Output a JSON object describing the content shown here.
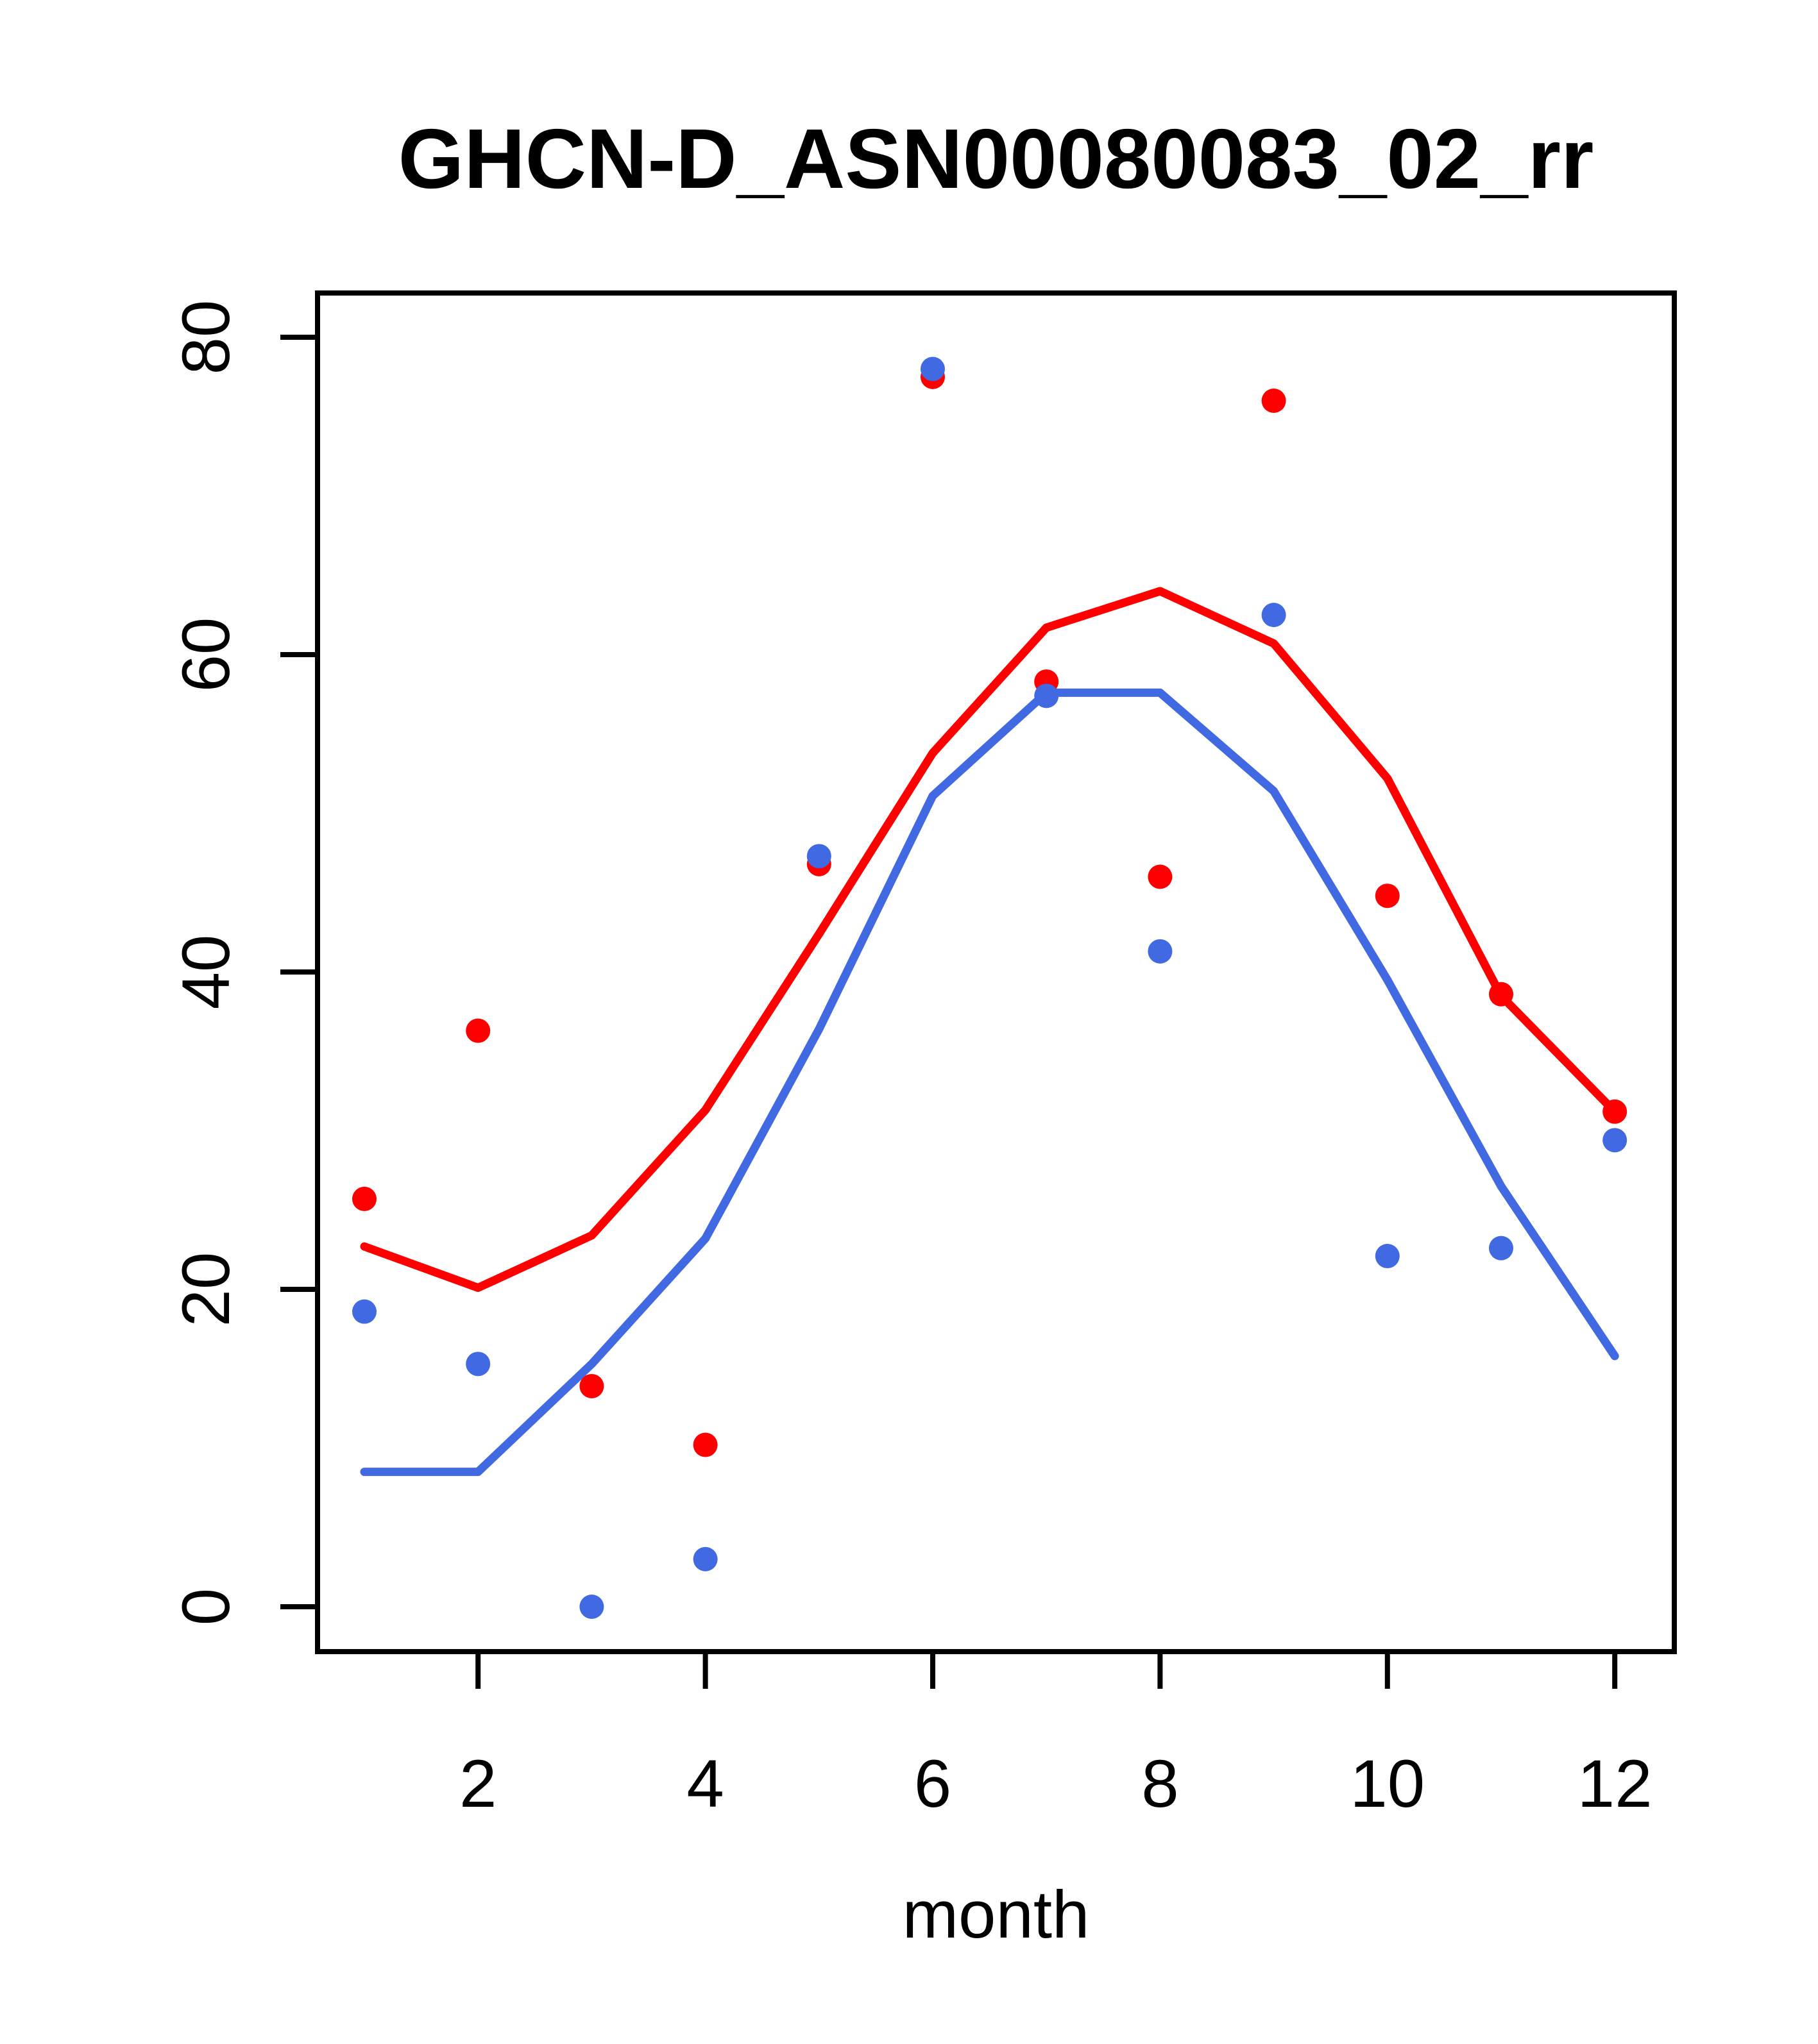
{
  "title": "GHCN-D_ASN00080083_02_rr",
  "colors": {
    "red_series": "#FF0000",
    "blue_series": "#4169E1",
    "axis": "#000000",
    "background": "#FFFFFF"
  },
  "chart_data": {
    "type": "scatter",
    "title": "GHCN-D_ASN00080083_02_rr",
    "xlabel": "month",
    "ylabel": "",
    "x": [
      1,
      2,
      3,
      4,
      5,
      6,
      7,
      8,
      9,
      10,
      11,
      12
    ],
    "xticks": [
      2,
      4,
      6,
      8,
      10,
      12
    ],
    "yticks": [
      0,
      20,
      40,
      60,
      80
    ],
    "xlim": [
      0.55,
      12.5
    ],
    "ylim": [
      -3,
      83
    ],
    "grid": false,
    "legend": "none",
    "series": [
      {
        "name": "red line (monthly climatology)",
        "kind": "line",
        "color": "#FF0000",
        "values": [
          22.7,
          20.1,
          23.4,
          31.3,
          42.4,
          53.8,
          61.7,
          64.0,
          60.7,
          52.2,
          38.5,
          31.2
        ]
      },
      {
        "name": "blue line (monthly climatology)",
        "kind": "line",
        "color": "#4169E1",
        "values": [
          8.5,
          8.5,
          15.3,
          23.2,
          36.4,
          51.1,
          57.6,
          57.6,
          51.4,
          39.5,
          26.5,
          15.8
        ]
      },
      {
        "name": "red points",
        "kind": "points",
        "color": "#FF0000",
        "values": [
          25.7,
          36.3,
          13.9,
          10.2,
          46.8,
          77.5,
          58.3,
          46.0,
          76.0,
          44.8,
          38.6,
          31.2
        ]
      },
      {
        "name": "blue points",
        "kind": "points",
        "color": "#4169E1",
        "values": [
          18.6,
          15.3,
          0.0,
          3.0,
          47.3,
          78.0,
          57.4,
          41.3,
          62.5,
          22.1,
          22.6,
          29.4
        ]
      }
    ]
  }
}
